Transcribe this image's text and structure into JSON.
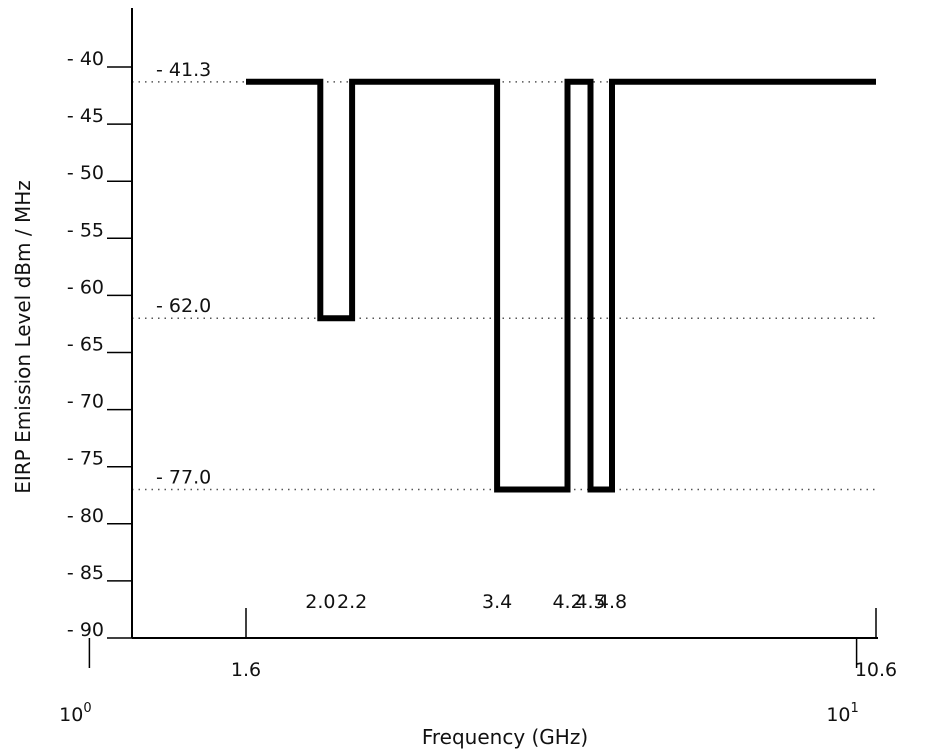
{
  "chart_data": {
    "type": "line",
    "title": "",
    "xlabel": "Frequency (GHz)",
    "ylabel": "EIRP Emission Level dBm / MHz",
    "xscale": "log",
    "x_decade_ticks": [
      {
        "value": 1,
        "base": "10",
        "exp": "0"
      },
      {
        "value": 10,
        "base": "10",
        "exp": "1"
      }
    ],
    "x_bottom_ticks": [
      {
        "value": 1.6,
        "label": "1.6"
      },
      {
        "value": 10.6,
        "label": "10.6"
      }
    ],
    "x_band_labels": [
      {
        "value": 2.0,
        "label": "2.0"
      },
      {
        "value": 2.2,
        "label": "2.2"
      },
      {
        "value": 3.4,
        "label": "3.4"
      },
      {
        "value": 4.2,
        "label": "4.2"
      },
      {
        "value": 4.5,
        "label": "4.5"
      },
      {
        "value": 4.8,
        "label": "4.8"
      }
    ],
    "ylim": [
      -90,
      -40
    ],
    "y_ticks": [
      {
        "value": -40,
        "label": "- 40"
      },
      {
        "value": -45,
        "label": "- 45"
      },
      {
        "value": -50,
        "label": "- 50"
      },
      {
        "value": -55,
        "label": "- 55"
      },
      {
        "value": -60,
        "label": "- 60"
      },
      {
        "value": -65,
        "label": "- 65"
      },
      {
        "value": -70,
        "label": "- 70"
      },
      {
        "value": -75,
        "label": "- 75"
      },
      {
        "value": -80,
        "label": "- 80"
      },
      {
        "value": -85,
        "label": "- 85"
      },
      {
        "value": -90,
        "label": "- 90"
      }
    ],
    "reference_levels": [
      {
        "value": -41.3,
        "label": "- 41.3"
      },
      {
        "value": -62.0,
        "label": "- 62.0"
      },
      {
        "value": -77.0,
        "label": "- 77.0"
      }
    ],
    "series": [
      {
        "x": [
          1.6,
          2.0,
          2.0,
          2.2,
          2.2,
          3.4,
          3.4,
          4.2,
          4.2,
          4.5,
          4.5,
          4.8,
          4.8,
          10.6
        ],
        "y": [
          -41.3,
          -41.3,
          -62.0,
          -62.0,
          -41.3,
          -41.3,
          -77.0,
          -77.0,
          -41.3,
          -41.3,
          -77.0,
          -77.0,
          -41.3,
          -41.3
        ]
      }
    ],
    "grid": false,
    "legend": "none",
    "colors": {
      "line": "#000000",
      "reference": "#555555"
    }
  }
}
